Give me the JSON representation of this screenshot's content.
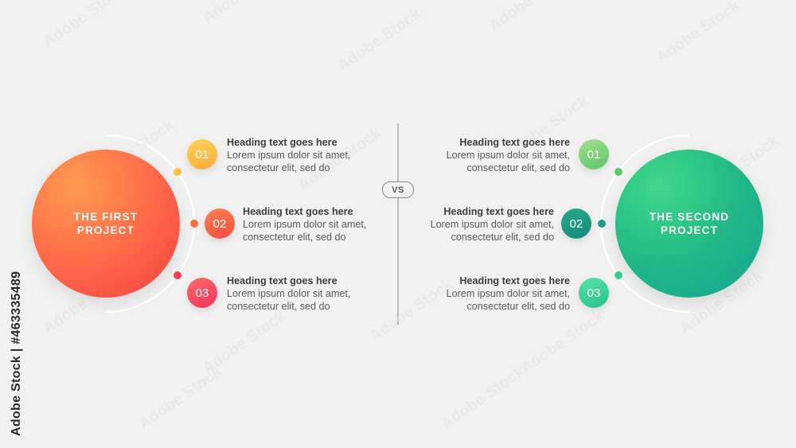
{
  "left_project": {
    "title_line1": "THE FIRST",
    "title_line2": "PROJECT",
    "items": [
      {
        "num": "01",
        "heading": "Heading text goes here",
        "line1": "Lorem ipsum dolor sit amet,",
        "line2": "consectetur elit, sed do"
      },
      {
        "num": "02",
        "heading": "Heading text goes here",
        "line1": "Lorem ipsum dolor sit amet,",
        "line2": "consectetur elit, sed do"
      },
      {
        "num": "03",
        "heading": "Heading text goes here",
        "line1": "Lorem ipsum dolor sit amet,",
        "line2": "consectetur elit, sed do"
      }
    ]
  },
  "right_project": {
    "title_line1": "THE SECOND",
    "title_line2": "PROJECT",
    "items": [
      {
        "num": "01",
        "heading": "Heading text goes here",
        "line1": "Lorem ipsum dolor sit amet,",
        "line2": "consectetur elit, sed do"
      },
      {
        "num": "02",
        "heading": "Heading text goes here",
        "line1": "Lorem ipsum dolor sit amet,",
        "line2": "consectetur elit, sed do"
      },
      {
        "num": "03",
        "heading": "Heading text goes here",
        "line1": "Lorem ipsum dolor sit amet,",
        "line2": "consectetur elit, sed do"
      }
    ]
  },
  "divider_label": "VS",
  "watermark": {
    "side_text": "Adobe Stock | #463335489",
    "repeat_text": "Adobe Stock"
  },
  "colors": {
    "background": "#f1f1f1",
    "left_accent": "#ff6b48",
    "right_accent": "#22b987"
  }
}
